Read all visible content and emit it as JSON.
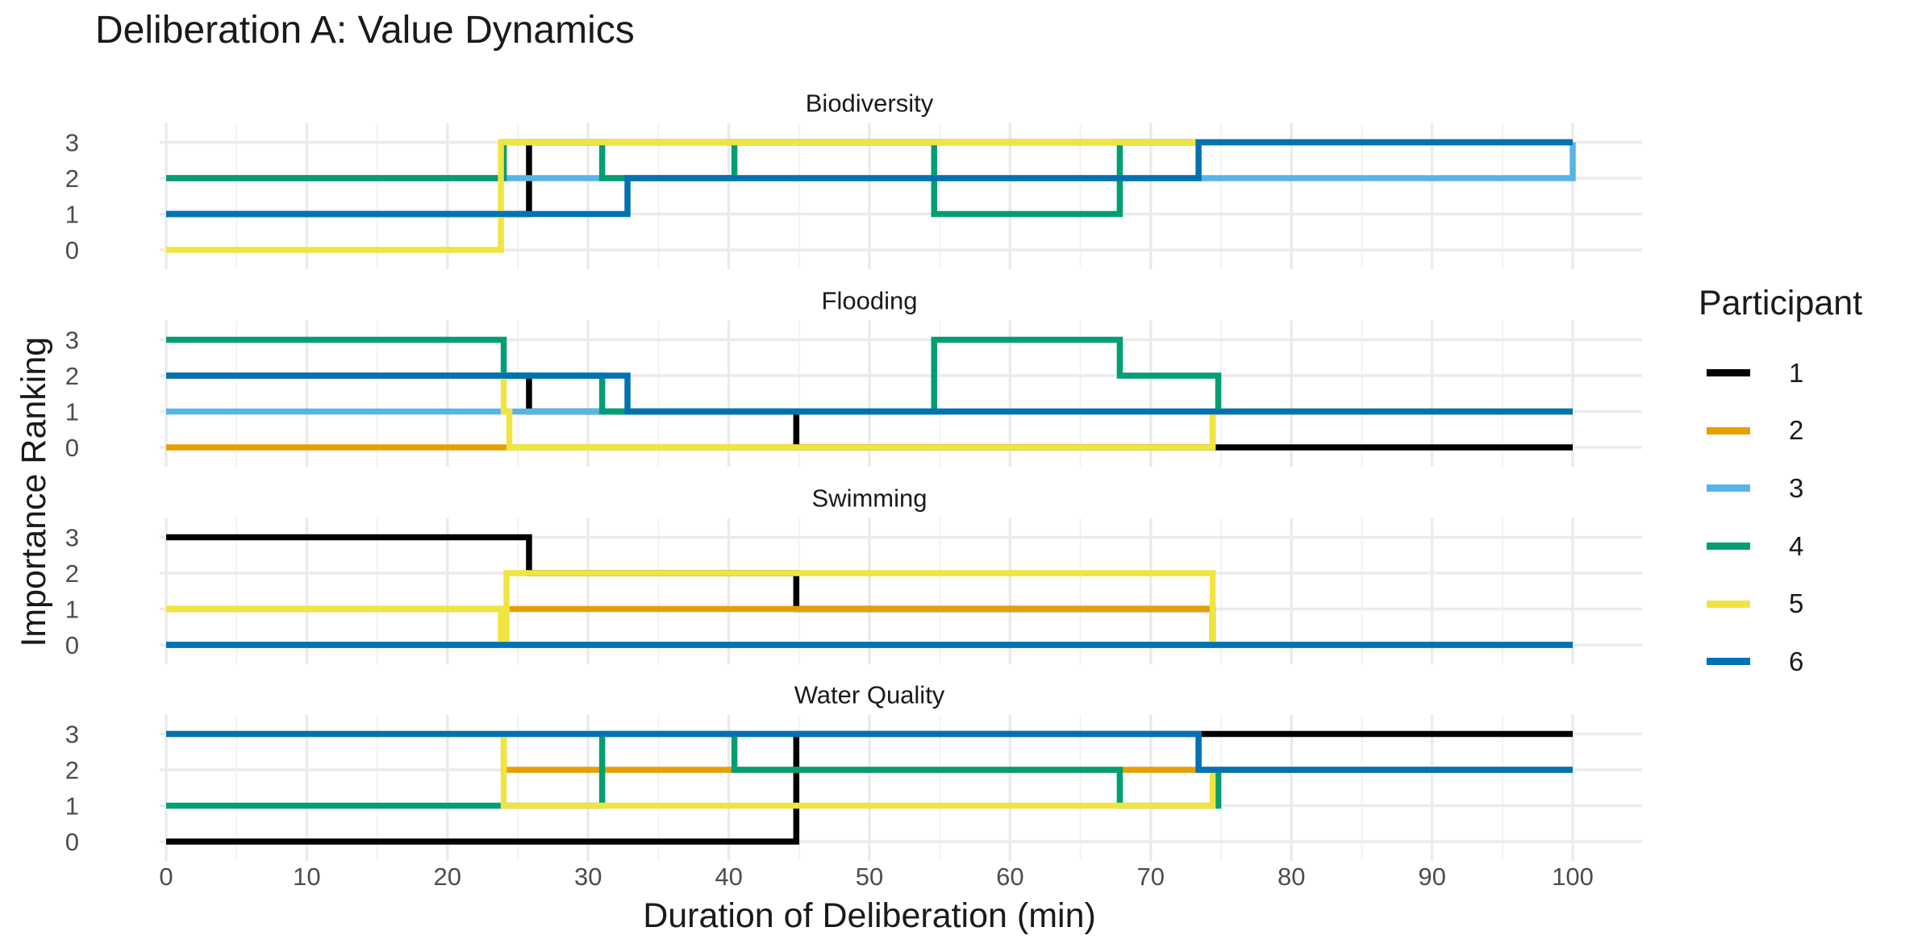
{
  "chart_data": {
    "type": "line",
    "step": true,
    "title": "Deliberation A: Value Dynamics",
    "xlabel": "Duration of Deliberation (min)",
    "ylabel": "Importance Ranking",
    "xlim": [
      0,
      100
    ],
    "ylim": [
      0,
      3
    ],
    "x_ticks": [
      0,
      10,
      20,
      30,
      40,
      50,
      60,
      70,
      80,
      90,
      100
    ],
    "y_ticks": [
      0,
      1,
      2,
      3
    ],
    "grid": true,
    "legend_title": "Participant",
    "legend_position": "right",
    "participants": [
      {
        "name": "1",
        "color": "#000000"
      },
      {
        "name": "2",
        "color": "#E69F00"
      },
      {
        "name": "3",
        "color": "#56B4E9"
      },
      {
        "name": "4",
        "color": "#009E73"
      },
      {
        "name": "5",
        "color": "#F0E442"
      },
      {
        "name": "6",
        "color": "#0072B2"
      }
    ],
    "facets": [
      {
        "title": "Biodiversity",
        "series": [
          {
            "name": "1",
            "x": [
              0,
              25.8,
              44.8,
              100
            ],
            "y": [
              1,
              3,
              3,
              3
            ]
          },
          {
            "name": "2",
            "x": [
              0,
              24,
              100
            ],
            "y": [
              2,
              3,
              3
            ]
          },
          {
            "name": "3",
            "x": [
              0,
              24,
              31,
              100
            ],
            "y": [
              2,
              2,
              2,
              3
            ]
          },
          {
            "name": "4",
            "x": [
              0,
              24,
              31,
              40.4,
              54.6,
              67.8,
              100
            ],
            "y": [
              2,
              3,
              2,
              3,
              1,
              3,
              3
            ]
          },
          {
            "name": "5",
            "x": [
              0,
              23.8,
              100
            ],
            "y": [
              0,
              3,
              3
            ]
          },
          {
            "name": "6",
            "x": [
              0,
              32.8,
              73.4,
              100
            ],
            "y": [
              1,
              2,
              3,
              3
            ]
          }
        ]
      },
      {
        "title": "Flooding",
        "series": [
          {
            "name": "1",
            "x": [
              0,
              25.8,
              44.8,
              100
            ],
            "y": [
              2,
              1,
              0,
              0
            ]
          },
          {
            "name": "2",
            "x": [
              0,
              74.4,
              100
            ],
            "y": [
              0,
              1,
              1
            ]
          },
          {
            "name": "3",
            "x": [
              0,
              100
            ],
            "y": [
              1,
              1
            ]
          },
          {
            "name": "4",
            "x": [
              0,
              24,
              31,
              54.6,
              67.8,
              74.8,
              100
            ],
            "y": [
              3,
              2,
              1,
              3,
              2,
              1,
              1
            ]
          },
          {
            "name": "5",
            "x": [
              0,
              24,
              24.4,
              74.4,
              100
            ],
            "y": [
              2,
              1,
              0,
              1,
              1
            ]
          },
          {
            "name": "6",
            "x": [
              0,
              32.8,
              100
            ],
            "y": [
              2,
              1,
              1
            ]
          }
        ]
      },
      {
        "title": "Swimming",
        "series": [
          {
            "name": "1",
            "x": [
              0,
              25.8,
              44.8,
              74.4,
              100
            ],
            "y": [
              3,
              2,
              1,
              0,
              0
            ]
          },
          {
            "name": "2",
            "x": [
              0,
              74.4,
              100
            ],
            "y": [
              1,
              0,
              0
            ]
          },
          {
            "name": "3",
            "x": [
              0,
              100
            ],
            "y": [
              0,
              0
            ]
          },
          {
            "name": "4",
            "x": [
              0,
              100
            ],
            "y": [
              0,
              0
            ]
          },
          {
            "name": "5",
            "x": [
              0,
              23.8,
              24.2,
              74.4,
              100
            ],
            "y": [
              1,
              0,
              2,
              0,
              0
            ]
          },
          {
            "name": "6",
            "x": [
              0,
              100
            ],
            "y": [
              0,
              0
            ]
          }
        ]
      },
      {
        "title": "Water Quality",
        "series": [
          {
            "name": "1",
            "x": [
              0,
              44.8,
              100
            ],
            "y": [
              0,
              3,
              3
            ]
          },
          {
            "name": "2",
            "x": [
              0,
              24,
              74.4,
              100
            ],
            "y": [
              3,
              2,
              2,
              2
            ]
          },
          {
            "name": "3",
            "x": [
              0,
              73.4,
              100
            ],
            "y": [
              3,
              2,
              2
            ]
          },
          {
            "name": "4",
            "x": [
              0,
              31,
              40.4,
              67.8,
              74.8,
              100
            ],
            "y": [
              1,
              3,
              2,
              1,
              2,
              2
            ]
          },
          {
            "name": "5",
            "x": [
              0,
              24,
              74.4,
              100
            ],
            "y": [
              3,
              1,
              2,
              2
            ]
          },
          {
            "name": "6",
            "x": [
              0,
              73.4,
              100
            ],
            "y": [
              3,
              2,
              2
            ]
          }
        ]
      }
    ]
  }
}
